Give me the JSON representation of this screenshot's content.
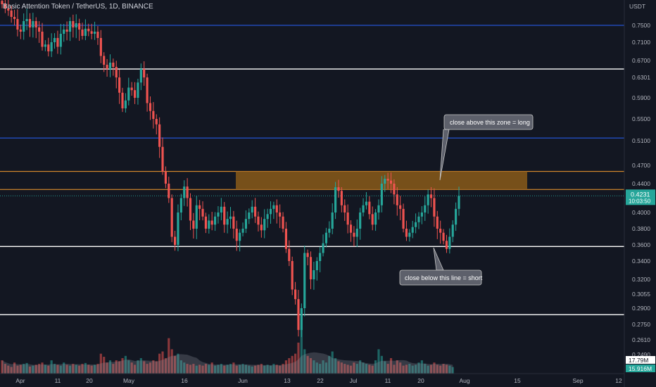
{
  "title": "Basic Attention Token / TetherUS, 1D, BINANCE",
  "currency": "USDT",
  "price_ticks": [
    "0.7500",
    "0.7100",
    "0.6700",
    "0.6301",
    "0.5900",
    "0.5500",
    "0.5100",
    "0.4700",
    "0.4400",
    "0.4000",
    "0.3800",
    "0.3600",
    "0.3400",
    "0.3200",
    "0.3055",
    "0.2900",
    "0.2750",
    "0.2610",
    "0.2490"
  ],
  "time_ticks": [
    "Apr",
    "11",
    "20",
    "May",
    "16",
    "Jun",
    "13",
    "22",
    "Jul",
    "11",
    "20",
    "Aug",
    "15",
    "Sep",
    "12"
  ],
  "current_price": {
    "value": "0.4231",
    "countdown": "10:03:50",
    "color": "#26a69a"
  },
  "volume_labels": [
    {
      "value": "17.79M",
      "text_color": "#131722",
      "bg": "#ffffff"
    },
    {
      "value": "15.916M",
      "text_color": "#ffffff",
      "bg": "#26a69a"
    }
  ],
  "annotations": [
    {
      "text": "close above this zone  =  long"
    },
    {
      "text": "close below this line = short"
    }
  ],
  "colors": {
    "up": "#26a69a",
    "down": "#ef5350",
    "blue_line": "#2962ff",
    "white_line": "#ffffff",
    "zone_fill": "#8a5a19",
    "zone_border": "#f59c2e",
    "callout_bg": "#5d606b",
    "callout_border": "#c9c9c9"
  },
  "chart_data": {
    "type": "candlestick",
    "title": "Basic Attention Token / TetherUS, 1D, BINANCE",
    "ylabel": "USDT",
    "levels": [
      {
        "price": 0.75,
        "color": "blue"
      },
      {
        "price": 0.65,
        "color": "white"
      },
      {
        "price": 0.515,
        "color": "blue"
      },
      {
        "price": 0.358,
        "color": "white"
      },
      {
        "price": 0.284,
        "color": "white"
      }
    ],
    "zone": {
      "top": 0.46,
      "bottom": 0.432
    },
    "closes": [
      0.8,
      0.79,
      0.785,
      0.77,
      0.765,
      0.74,
      0.735,
      0.76,
      0.765,
      0.745,
      0.76,
      0.745,
      0.735,
      0.7,
      0.705,
      0.69,
      0.71,
      0.72,
      0.7,
      0.73,
      0.74,
      0.735,
      0.76,
      0.745,
      0.755,
      0.74,
      0.725,
      0.742,
      0.736,
      0.73,
      0.735,
      0.72,
      0.68,
      0.66,
      0.65,
      0.665,
      0.655,
      0.63,
      0.6,
      0.57,
      0.585,
      0.61,
      0.605,
      0.59,
      0.62,
      0.65,
      0.63,
      0.58,
      0.565,
      0.55,
      0.54,
      0.5,
      0.46,
      0.44,
      0.42,
      0.37,
      0.36,
      0.4,
      0.42,
      0.436,
      0.42,
      0.39,
      0.38,
      0.41,
      0.405,
      0.395,
      0.38,
      0.39,
      0.385,
      0.395,
      0.4,
      0.408,
      0.385,
      0.392,
      0.395,
      0.38,
      0.365,
      0.375,
      0.38,
      0.392,
      0.4,
      0.408,
      0.395,
      0.385,
      0.378,
      0.392,
      0.398,
      0.405,
      0.41,
      0.4,
      0.395,
      0.38,
      0.355,
      0.34,
      0.31,
      0.3,
      0.27,
      0.29,
      0.35,
      0.345,
      0.32,
      0.33,
      0.34,
      0.35,
      0.362,
      0.375,
      0.38,
      0.4,
      0.435,
      0.43,
      0.41,
      0.4,
      0.385,
      0.375,
      0.37,
      0.38,
      0.4,
      0.41,
      0.415,
      0.398,
      0.385,
      0.4,
      0.41,
      0.44,
      0.448,
      0.445,
      0.44,
      0.425,
      0.41,
      0.405,
      0.38,
      0.37,
      0.375,
      0.382,
      0.388,
      0.395,
      0.4,
      0.41,
      0.425,
      0.42,
      0.395,
      0.38,
      0.375,
      0.365,
      0.355,
      0.37,
      0.385,
      0.405,
      0.4231
    ],
    "volumes": [
      0.3,
      0.22,
      0.18,
      0.15,
      0.25,
      0.18,
      0.2,
      0.22,
      0.24,
      0.16,
      0.18,
      0.2,
      0.22,
      0.25,
      0.2,
      0.18,
      0.3,
      0.22,
      0.2,
      0.18,
      0.25,
      0.2,
      0.18,
      0.22,
      0.2,
      0.18,
      0.22,
      0.24,
      0.2,
      0.18,
      0.2,
      0.22,
      0.45,
      0.38,
      0.25,
      0.3,
      0.22,
      0.3,
      0.28,
      0.35,
      0.4,
      0.3,
      0.25,
      0.2,
      0.3,
      0.35,
      0.28,
      0.22,
      0.25,
      0.3,
      0.28,
      0.45,
      0.5,
      0.35,
      0.8,
      0.55,
      0.4,
      0.45,
      0.3,
      0.25,
      0.22,
      0.2,
      0.22,
      0.18,
      0.2,
      0.18,
      0.22,
      0.2,
      0.25,
      0.18,
      0.2,
      0.22,
      0.18,
      0.2,
      0.22,
      0.25,
      0.18,
      0.2,
      0.22,
      0.2,
      0.18,
      0.16,
      0.18,
      0.2,
      0.22,
      0.18,
      0.2,
      0.18,
      0.22,
      0.2,
      0.18,
      0.22,
      0.3,
      0.35,
      0.4,
      0.45,
      0.7,
      1.0,
      0.55,
      0.4,
      0.35,
      0.3,
      0.25,
      0.22,
      0.3,
      0.25,
      0.4,
      0.5,
      0.35,
      0.28,
      0.25,
      0.22,
      0.2,
      0.18,
      0.25,
      0.22,
      0.3,
      0.25,
      0.22,
      0.2,
      0.18,
      0.3,
      0.55,
      0.4,
      0.28,
      0.22,
      0.35,
      0.2,
      0.3,
      0.25,
      0.18,
      0.2,
      0.22,
      0.18,
      0.2,
      0.25,
      0.3,
      0.22,
      0.18,
      0.2,
      0.25,
      0.2,
      0.18,
      0.22,
      0.2,
      0.18,
      0.15
    ]
  }
}
